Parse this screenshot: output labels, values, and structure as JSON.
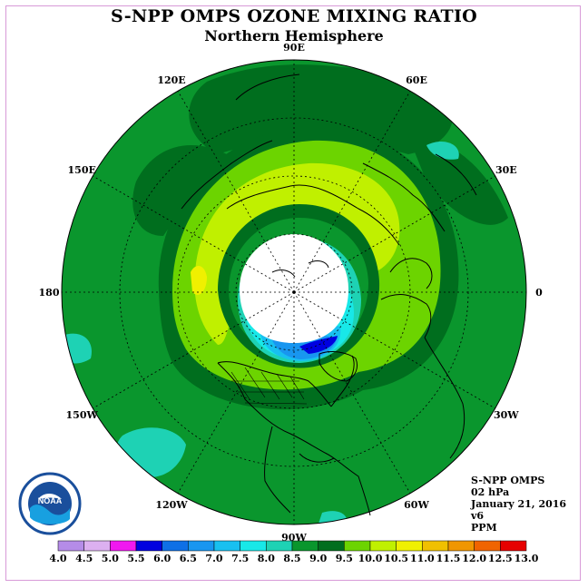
{
  "title": "S-NPP OMPS OZONE MIXING RATIO",
  "subtitle": "Northern Hemisphere",
  "longitude_labels": [
    "90E",
    "60E",
    "30E",
    "0",
    "30W",
    "60W",
    "90W",
    "120W",
    "150W",
    "180",
    "150E",
    "120E"
  ],
  "info": {
    "instrument": "S-NPP OMPS",
    "level": "02 hPa",
    "date": "January 21, 2016",
    "version": "v6",
    "units": "PPM"
  },
  "logo_text": "NOAA",
  "colorbar": {
    "ticks": [
      "4.0",
      "4.5",
      "5.0",
      "5.5",
      "6.0",
      "6.5",
      "7.0",
      "7.5",
      "8.0",
      "8.5",
      "9.0",
      "9.5",
      "10.0",
      "10.5",
      "11.0",
      "11.5",
      "12.0",
      "12.5",
      "13.0"
    ],
    "colors": [
      "#b58ce8",
      "#dcb0f0",
      "#f018f0",
      "#0000e0",
      "#0e70e6",
      "#1896f0",
      "#18c0f0",
      "#18e8e8",
      "#1ed2b4",
      "#0a962d",
      "#006e1e",
      "#6cd400",
      "#c0f000",
      "#f0f000",
      "#f0c000",
      "#f09600",
      "#f06400",
      "#e60000",
      "#8c5a3c"
    ]
  }
}
